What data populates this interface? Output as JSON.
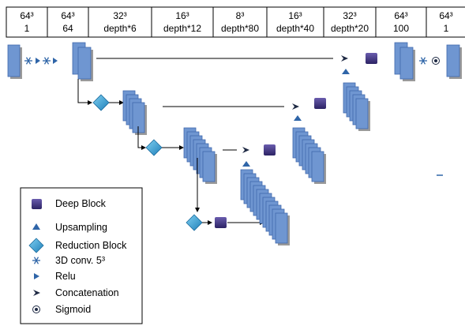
{
  "header": {
    "columns": [
      {
        "top": "64³",
        "bottom": "1"
      },
      {
        "top": "64³",
        "bottom": "64"
      },
      {
        "top": "32³",
        "bottom": "depth*6"
      },
      {
        "top": "16³",
        "bottom": "depth*12"
      },
      {
        "top": "8³",
        "bottom": "depth*80"
      },
      {
        "top": "16³",
        "bottom": "depth*40"
      },
      {
        "top": "32³",
        "bottom": "depth*20"
      },
      {
        "top": "64³",
        "bottom": "100"
      },
      {
        "top": "64³",
        "bottom": "1"
      }
    ]
  },
  "legend": {
    "items": [
      {
        "label": "Deep Block",
        "icon": "deep-block-icon"
      },
      {
        "label": "Upsampling",
        "icon": "upsampling-icon"
      },
      {
        "label": "Reduction Block",
        "icon": "reduction-block-icon"
      },
      {
        "label": "3D conv. 5³",
        "icon": "asterisk-icon"
      },
      {
        "label": "Relu",
        "icon": "relu-icon"
      },
      {
        "label": "Concatenation",
        "icon": "concatenation-icon"
      },
      {
        "label": "Sigmoid",
        "icon": "sigmoid-icon"
      }
    ]
  },
  "colors": {
    "block_fill": "#6f96d1",
    "block_stroke": "#3f68ad",
    "block_shadow": "#9a9a9a",
    "deep_block": "#4b3d8c",
    "reduction_fill": "#3aa3d8",
    "arrow_icon": "#2f65a8",
    "concat_icon": "#1f2a44"
  }
}
